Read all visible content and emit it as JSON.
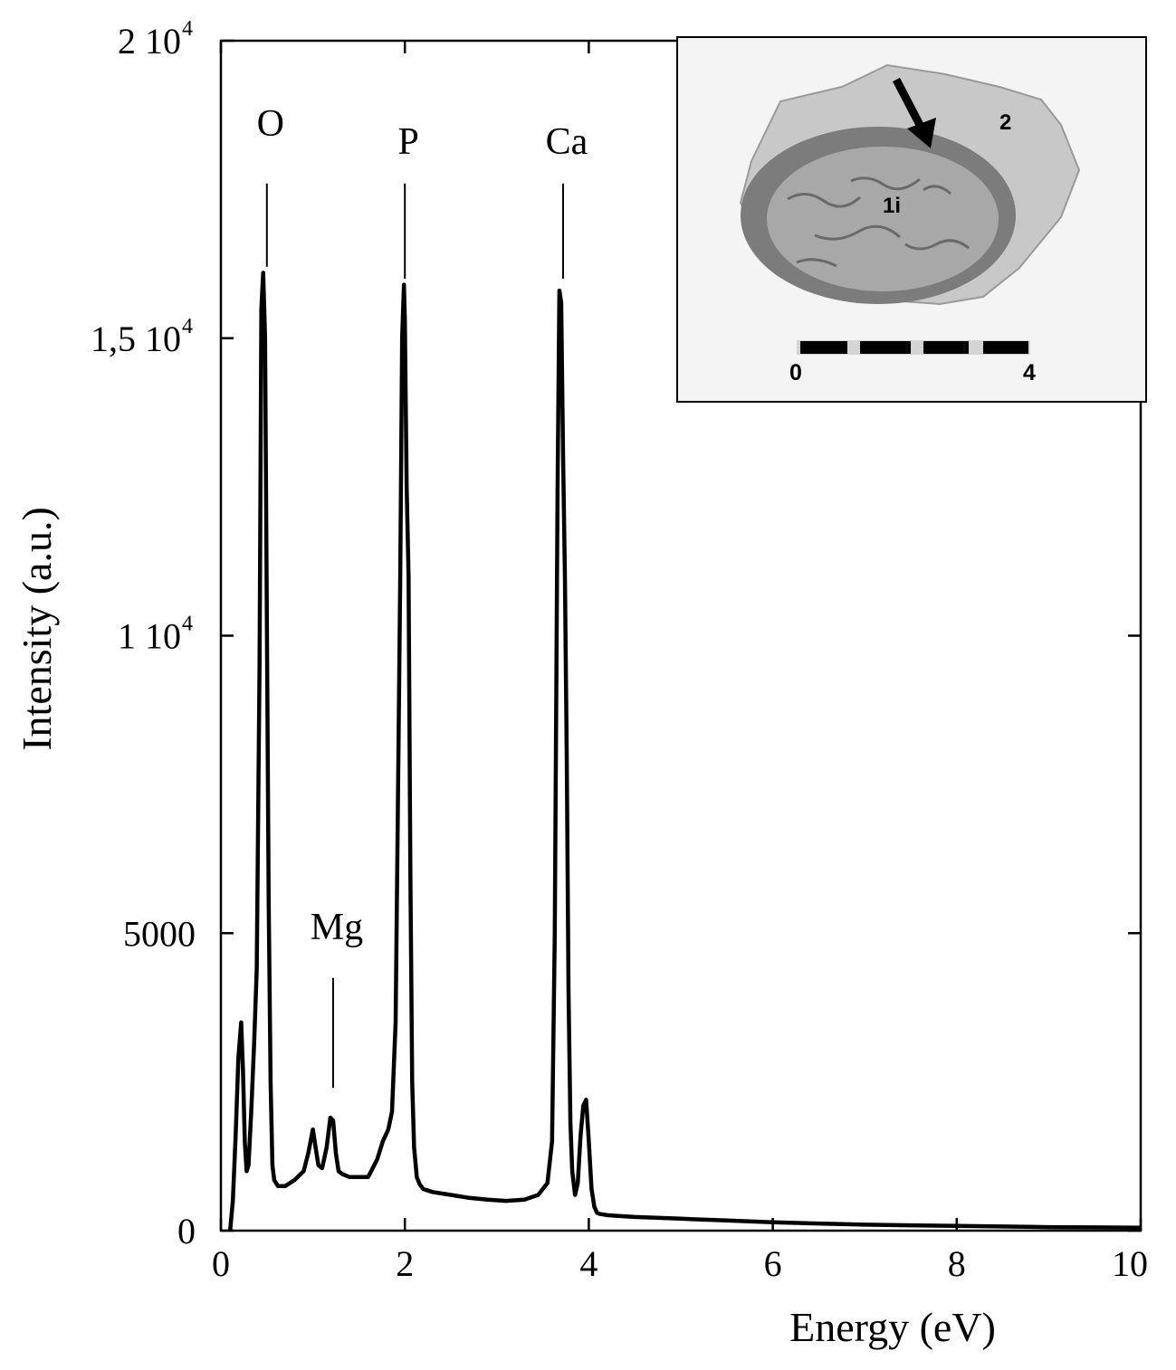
{
  "chart_data": {
    "type": "line",
    "title": "",
    "xlabel": "Energy (eV)",
    "ylabel": "Intensity (a.u.)",
    "xlim": [
      0,
      10
    ],
    "ylim": [
      0,
      20000
    ],
    "grid": false,
    "x_ticks": [
      {
        "value": 0,
        "label": "0"
      },
      {
        "value": 2,
        "label": "2"
      },
      {
        "value": 4,
        "label": "4"
      },
      {
        "value": 6,
        "label": "6"
      },
      {
        "value": 8,
        "label": "8"
      },
      {
        "value": 10,
        "label": "10"
      }
    ],
    "y_ticks": [
      {
        "value": 0,
        "label": "0",
        "exp": ""
      },
      {
        "value": 5000,
        "label": "5000",
        "exp": ""
      },
      {
        "value": 10000,
        "label": "1 10",
        "exp": "4"
      },
      {
        "value": 15000,
        "label": "1,5 10",
        "exp": "4"
      },
      {
        "value": 20000,
        "label": "2 10",
        "exp": "4"
      }
    ],
    "annotations": [
      {
        "label": "O",
        "x": 0.5,
        "y_text": 18400,
        "y_line_top": 17600,
        "y_line_bottom": 16200
      },
      {
        "label": "P",
        "x": 2.0,
        "y_text": 18100,
        "y_line_top": 17600,
        "y_line_bottom": 16000
      },
      {
        "label": "Ca",
        "x": 3.72,
        "y_text": 18100,
        "y_line_top": 17600,
        "y_line_bottom": 16000
      },
      {
        "label": "Mg",
        "x": 1.22,
        "y_text": 4900,
        "y_line_top": 4250,
        "y_line_bottom": 2400
      }
    ],
    "series": [
      {
        "x": [
          0.1,
          0.13,
          0.16,
          0.19,
          0.22,
          0.24,
          0.26,
          0.28,
          0.3,
          0.33,
          0.36,
          0.39,
          0.42,
          0.44,
          0.46,
          0.48,
          0.5,
          0.52,
          0.54,
          0.56,
          0.58,
          0.6,
          0.62,
          0.65,
          0.7,
          0.8,
          0.9,
          0.95,
          1.0,
          1.03,
          1.06,
          1.1,
          1.15,
          1.19,
          1.22,
          1.25,
          1.28,
          1.32,
          1.4,
          1.5,
          1.6,
          1.7,
          1.76,
          1.82,
          1.86,
          1.9,
          1.93,
          1.95,
          1.97,
          1.99,
          2.0,
          2.02,
          2.04,
          2.06,
          2.08,
          2.1,
          2.13,
          2.16,
          2.2,
          2.3,
          2.5,
          2.7,
          2.9,
          3.1,
          3.3,
          3.45,
          3.55,
          3.6,
          3.63,
          3.66,
          3.68,
          3.7,
          3.72,
          3.74,
          3.76,
          3.78,
          3.8,
          3.82,
          3.85,
          3.88,
          3.91,
          3.94,
          3.97,
          4.0,
          4.03,
          4.06,
          4.09,
          4.12,
          4.16,
          4.2,
          4.3,
          4.5,
          5.0,
          5.5,
          6.0,
          6.5,
          7.0,
          7.5,
          8.0,
          8.5,
          9.0,
          9.5,
          10.0
        ],
        "y": [
          0,
          500,
          1600,
          2900,
          3500,
          2700,
          1500,
          1000,
          1100,
          2000,
          3100,
          4400,
          9500,
          15500,
          16100,
          15000,
          10200,
          5500,
          2500,
          1100,
          850,
          800,
          750,
          750,
          750,
          850,
          1000,
          1300,
          1700,
          1400,
          1100,
          1050,
          1400,
          1900,
          1850,
          1300,
          1000,
          950,
          900,
          900,
          900,
          1200,
          1500,
          1700,
          2000,
          3500,
          8000,
          11000,
          15000,
          15900,
          15300,
          12500,
          11000,
          6000,
          2500,
          1400,
          900,
          780,
          700,
          650,
          600,
          550,
          520,
          500,
          520,
          600,
          800,
          1500,
          5000,
          12500,
          15800,
          15600,
          13000,
          11000,
          8000,
          4000,
          1800,
          1000,
          600,
          800,
          1600,
          2100,
          2200,
          1500,
          700,
          400,
          300,
          280,
          270,
          260,
          250,
          230,
          200,
          170,
          140,
          120,
          100,
          90,
          80,
          70,
          60,
          55,
          50
        ]
      }
    ]
  },
  "inset": {
    "label_region_1": "1i",
    "label_region_2": "2",
    "scale_start": "0",
    "scale_end": "4"
  }
}
